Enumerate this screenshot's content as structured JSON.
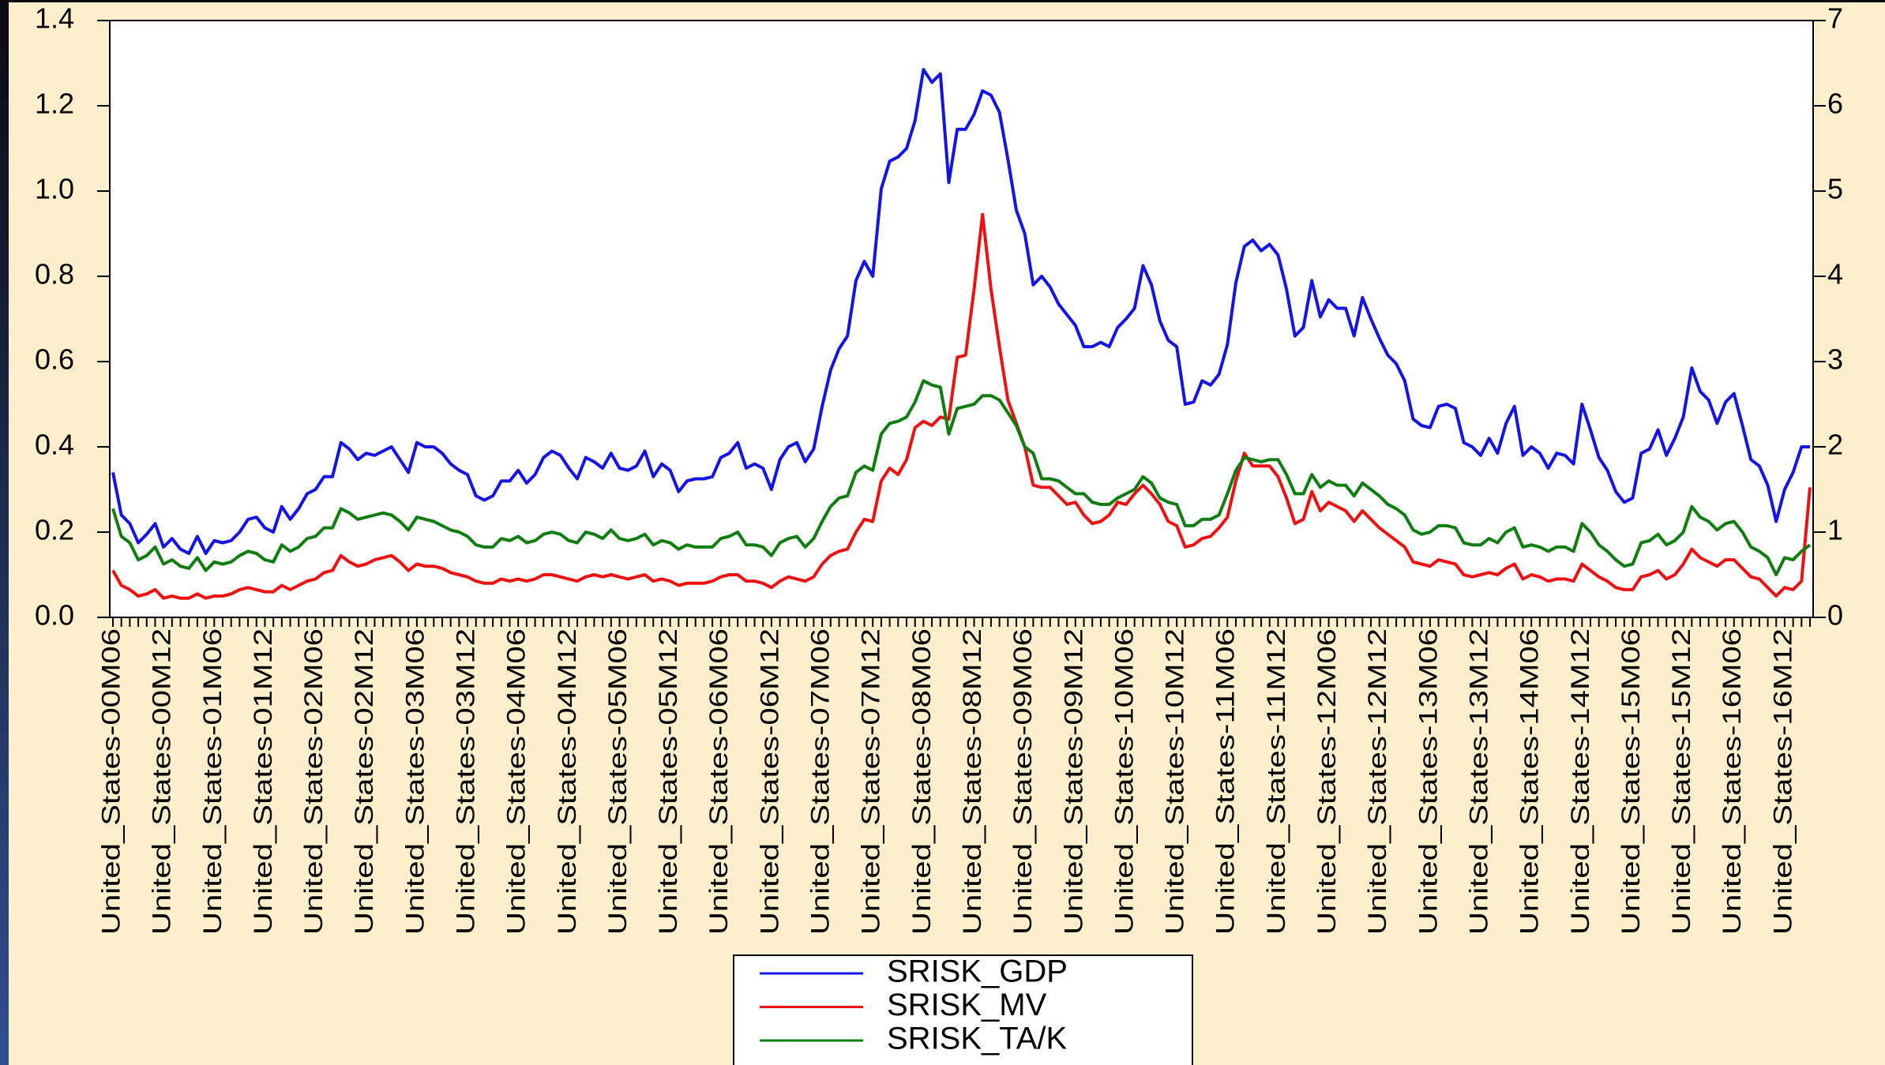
{
  "chart_data": {
    "type": "line",
    "categories": [
      "United_States-00M06",
      null,
      null,
      null,
      null,
      null,
      "United_States-00M12",
      null,
      null,
      null,
      null,
      null,
      "United_States-01M06",
      null,
      null,
      null,
      null,
      null,
      "United_States-01M12",
      null,
      null,
      null,
      null,
      null,
      "United_States-02M06",
      null,
      null,
      null,
      null,
      null,
      "United_States-02M12",
      null,
      null,
      null,
      null,
      null,
      "United_States-03M06",
      null,
      null,
      null,
      null,
      null,
      "United_States-03M12",
      null,
      null,
      null,
      null,
      null,
      "United_States-04M06",
      null,
      null,
      null,
      null,
      null,
      "United_States-04M12",
      null,
      null,
      null,
      null,
      null,
      "United_States-05M06",
      null,
      null,
      null,
      null,
      null,
      "United_States-05M12",
      null,
      null,
      null,
      null,
      null,
      "United_States-06M06",
      null,
      null,
      null,
      null,
      null,
      "United_States-06M12",
      null,
      null,
      null,
      null,
      null,
      "United_States-07M06",
      null,
      null,
      null,
      null,
      null,
      "United_States-07M12",
      null,
      null,
      null,
      null,
      null,
      "United_States-08M06",
      null,
      null,
      null,
      null,
      null,
      "United_States-08M12",
      null,
      null,
      null,
      null,
      null,
      "United_States-09M06",
      null,
      null,
      null,
      null,
      null,
      "United_States-09M12",
      null,
      null,
      null,
      null,
      null,
      "United_States-10M06",
      null,
      null,
      null,
      null,
      null,
      "United_States-10M12",
      null,
      null,
      null,
      null,
      null,
      "United_States-11M06",
      null,
      null,
      null,
      null,
      null,
      "United_States-11M12",
      null,
      null,
      null,
      null,
      null,
      "United_States-12M06",
      null,
      null,
      null,
      null,
      null,
      "United_States-12M12",
      null,
      null,
      null,
      null,
      null,
      "United_States-13M06",
      null,
      null,
      null,
      null,
      null,
      "United_States-13M12",
      null,
      null,
      null,
      null,
      null,
      "United_States-14M06",
      null,
      null,
      null,
      null,
      null,
      "United_States-14M12",
      null,
      null,
      null,
      null,
      null,
      "United_States-15M06",
      null,
      null,
      null,
      null,
      null,
      "United_States-15M12",
      null,
      null,
      null,
      null,
      null,
      "United_States-16M06",
      null,
      null,
      null,
      null,
      null,
      "United_States-16M12",
      null,
      null,
      null
    ],
    "series": [
      {
        "name": "SRISK_GDP",
        "color": "#1414e6",
        "values": [
          0.34,
          0.24,
          0.22,
          0.175,
          0.195,
          0.22,
          0.165,
          0.185,
          0.16,
          0.15,
          0.19,
          0.15,
          0.18,
          0.175,
          0.18,
          0.2,
          0.23,
          0.235,
          0.21,
          0.2,
          0.26,
          0.23,
          0.255,
          0.29,
          0.3,
          0.33,
          0.33,
          0.41,
          0.395,
          0.37,
          0.385,
          0.38,
          0.39,
          0.4,
          0.37,
          0.34,
          0.41,
          0.4,
          0.4,
          0.385,
          0.36,
          0.345,
          0.335,
          0.285,
          0.275,
          0.285,
          0.32,
          0.32,
          0.345,
          0.315,
          0.335,
          0.375,
          0.39,
          0.38,
          0.35,
          0.325,
          0.375,
          0.365,
          0.35,
          0.385,
          0.35,
          0.345,
          0.355,
          0.39,
          0.33,
          0.36,
          0.345,
          0.295,
          0.32,
          0.325,
          0.325,
          0.33,
          0.375,
          0.385,
          0.41,
          0.35,
          0.36,
          0.35,
          0.3,
          0.37,
          0.4,
          0.41,
          0.365,
          0.395,
          0.495,
          0.58,
          0.63,
          0.66,
          0.79,
          0.835,
          0.8,
          1.005,
          1.07,
          1.08,
          1.1,
          1.165,
          1.285,
          1.255,
          1.275,
          1.02,
          1.145,
          1.145,
          1.18,
          1.235,
          1.225,
          1.185,
          1.075,
          0.955,
          0.9,
          0.78,
          0.8,
          0.775,
          0.735,
          0.71,
          0.685,
          0.635,
          0.635,
          0.645,
          0.635,
          0.68,
          0.7,
          0.725,
          0.825,
          0.78,
          0.695,
          0.65,
          0.635,
          0.5,
          0.505,
          0.555,
          0.545,
          0.57,
          0.64,
          0.785,
          0.87,
          0.885,
          0.86,
          0.875,
          0.85,
          0.77,
          0.66,
          0.68,
          0.79,
          0.705,
          0.745,
          0.725,
          0.725,
          0.66,
          0.75,
          0.7,
          0.655,
          0.615,
          0.595,
          0.555,
          0.465,
          0.45,
          0.445,
          0.495,
          0.5,
          0.49,
          0.41,
          0.4,
          0.38,
          0.42,
          0.385,
          0.455,
          0.495,
          0.38,
          0.4,
          0.385,
          0.35,
          0.385,
          0.38,
          0.36,
          0.5,
          0.44,
          0.375,
          0.345,
          0.295,
          0.27,
          0.28,
          0.385,
          0.395,
          0.44,
          0.38,
          0.42,
          0.47,
          0.585,
          0.53,
          0.51,
          0.455,
          0.505,
          0.525,
          0.45,
          0.37,
          0.355,
          0.31,
          0.225,
          0.3,
          0.34,
          0.4,
          0.4
        ]
      },
      {
        "name": "SRISK_MV",
        "color": "#ee1111",
        "values": [
          0.11,
          0.075,
          0.065,
          0.05,
          0.055,
          0.065,
          0.045,
          0.05,
          0.045,
          0.045,
          0.055,
          0.045,
          0.05,
          0.05,
          0.055,
          0.065,
          0.07,
          0.065,
          0.06,
          0.06,
          0.075,
          0.065,
          0.075,
          0.085,
          0.09,
          0.105,
          0.11,
          0.145,
          0.13,
          0.12,
          0.125,
          0.135,
          0.14,
          0.145,
          0.13,
          0.11,
          0.125,
          0.12,
          0.12,
          0.115,
          0.105,
          0.1,
          0.095,
          0.085,
          0.08,
          0.08,
          0.09,
          0.085,
          0.09,
          0.085,
          0.09,
          0.1,
          0.1,
          0.095,
          0.09,
          0.085,
          0.095,
          0.1,
          0.095,
          0.1,
          0.095,
          0.09,
          0.095,
          0.1,
          0.085,
          0.09,
          0.085,
          0.075,
          0.08,
          0.08,
          0.08,
          0.085,
          0.095,
          0.1,
          0.1,
          0.085,
          0.085,
          0.08,
          0.07,
          0.085,
          0.095,
          0.09,
          0.085,
          0.095,
          0.125,
          0.145,
          0.155,
          0.16,
          0.2,
          0.23,
          0.225,
          0.32,
          0.35,
          0.335,
          0.37,
          0.445,
          0.46,
          0.45,
          0.47,
          0.465,
          0.61,
          0.615,
          0.77,
          0.945,
          0.77,
          0.635,
          0.51,
          0.455,
          0.4,
          0.31,
          0.305,
          0.305,
          0.285,
          0.265,
          0.27,
          0.24,
          0.22,
          0.225,
          0.24,
          0.27,
          0.265,
          0.29,
          0.31,
          0.29,
          0.265,
          0.225,
          0.215,
          0.165,
          0.17,
          0.185,
          0.19,
          0.21,
          0.235,
          0.32,
          0.385,
          0.355,
          0.355,
          0.355,
          0.33,
          0.28,
          0.22,
          0.23,
          0.295,
          0.25,
          0.27,
          0.26,
          0.25,
          0.225,
          0.25,
          0.23,
          0.21,
          0.195,
          0.18,
          0.165,
          0.13,
          0.125,
          0.12,
          0.135,
          0.13,
          0.125,
          0.1,
          0.095,
          0.1,
          0.105,
          0.1,
          0.115,
          0.125,
          0.09,
          0.1,
          0.095,
          0.085,
          0.09,
          0.09,
          0.085,
          0.125,
          0.11,
          0.095,
          0.085,
          0.07,
          0.065,
          0.065,
          0.095,
          0.1,
          0.11,
          0.09,
          0.1,
          0.125,
          0.16,
          0.14,
          0.13,
          0.12,
          0.135,
          0.135,
          0.115,
          0.095,
          0.09,
          0.07,
          0.05,
          0.07,
          0.065,
          0.085,
          0.305
        ]
      },
      {
        "name": "SRISK_TA/K",
        "color": "#0f7d0f",
        "values": [
          0.255,
          0.19,
          0.175,
          0.135,
          0.145,
          0.165,
          0.125,
          0.135,
          0.12,
          0.115,
          0.14,
          0.11,
          0.13,
          0.125,
          0.13,
          0.145,
          0.155,
          0.15,
          0.135,
          0.13,
          0.17,
          0.155,
          0.165,
          0.185,
          0.19,
          0.21,
          0.21,
          0.255,
          0.245,
          0.23,
          0.235,
          0.24,
          0.245,
          0.24,
          0.225,
          0.205,
          0.235,
          0.23,
          0.225,
          0.215,
          0.205,
          0.2,
          0.19,
          0.17,
          0.165,
          0.165,
          0.185,
          0.18,
          0.19,
          0.175,
          0.18,
          0.195,
          0.2,
          0.195,
          0.18,
          0.175,
          0.2,
          0.195,
          0.185,
          0.205,
          0.185,
          0.18,
          0.185,
          0.195,
          0.17,
          0.18,
          0.175,
          0.16,
          0.17,
          0.165,
          0.165,
          0.165,
          0.185,
          0.19,
          0.2,
          0.17,
          0.17,
          0.165,
          0.145,
          0.175,
          0.185,
          0.19,
          0.165,
          0.185,
          0.225,
          0.26,
          0.28,
          0.285,
          0.34,
          0.355,
          0.345,
          0.43,
          0.455,
          0.46,
          0.47,
          0.505,
          0.555,
          0.545,
          0.54,
          0.43,
          0.49,
          0.495,
          0.5,
          0.52,
          0.52,
          0.51,
          0.48,
          0.45,
          0.4,
          0.385,
          0.325,
          0.325,
          0.32,
          0.305,
          0.29,
          0.29,
          0.27,
          0.265,
          0.265,
          0.28,
          0.29,
          0.3,
          0.33,
          0.315,
          0.28,
          0.27,
          0.265,
          0.215,
          0.215,
          0.23,
          0.23,
          0.24,
          0.29,
          0.345,
          0.375,
          0.37,
          0.365,
          0.37,
          0.37,
          0.335,
          0.29,
          0.29,
          0.335,
          0.305,
          0.32,
          0.31,
          0.31,
          0.285,
          0.315,
          0.3,
          0.285,
          0.265,
          0.255,
          0.24,
          0.205,
          0.195,
          0.2,
          0.215,
          0.215,
          0.21,
          0.175,
          0.17,
          0.17,
          0.185,
          0.175,
          0.2,
          0.21,
          0.165,
          0.17,
          0.165,
          0.155,
          0.165,
          0.165,
          0.155,
          0.22,
          0.2,
          0.17,
          0.155,
          0.135,
          0.12,
          0.125,
          0.175,
          0.18,
          0.195,
          0.17,
          0.18,
          0.2,
          0.26,
          0.235,
          0.225,
          0.205,
          0.22,
          0.225,
          0.2,
          0.165,
          0.155,
          0.14,
          0.1,
          0.14,
          0.135,
          0.155,
          0.17
        ]
      }
    ],
    "ylim": [
      0,
      1.4
    ],
    "yticks": [
      {
        "value": 0,
        "label": "0.0"
      },
      0.2,
      0.4,
      0.6,
      0.8,
      {
        "value": 1,
        "label": "1.0"
      },
      1.2,
      1.4
    ],
    "y2lim": [
      0,
      7
    ],
    "y2ticks": [
      0,
      1,
      2,
      3,
      4,
      5,
      6,
      7
    ],
    "grid": false,
    "legend": "bottom"
  }
}
